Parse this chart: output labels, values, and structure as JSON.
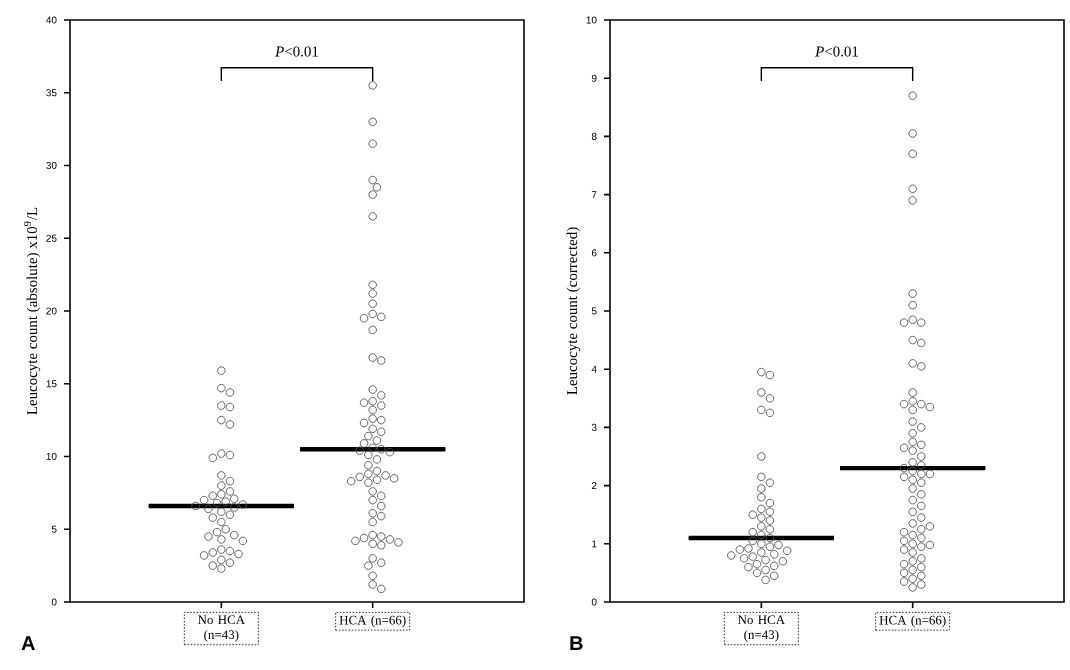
{
  "chart_data": [
    {
      "type": "scatter",
      "ylabel": "Leucocyte count (absolute) x10$^{9}$/L",
      "categories": [
        "No HCA (n=43)",
        "HCA (n=66)"
      ],
      "ylim": [
        0,
        40
      ],
      "yticks": [
        0,
        5,
        10,
        15,
        20,
        25,
        30,
        35,
        40
      ],
      "marker": "circle",
      "annotations": [
        "*P*<0.01",
        "A"
      ],
      "series": [
        {
          "type": "scatter",
          "color": "#555555",
          "x": [
            "No HCA (n=43)",
            "No HCA (n=43)",
            "No HCA (n=43)",
            "No HCA (n=43)",
            "No HCA (n=43)",
            "No HCA (n=43)",
            "No HCA (n=43)",
            "No HCA (n=43)",
            "No HCA (n=43)",
            "No HCA (n=43)",
            "No HCA (n=43)",
            "No HCA (n=43)",
            "No HCA (n=43)",
            "No HCA (n=43)",
            "No HCA (n=43)",
            "No HCA (n=43)",
            "No HCA (n=43)",
            "No HCA (n=43)",
            "No HCA (n=43)",
            "No HCA (n=43)",
            "No HCA (n=43)",
            "No HCA (n=43)",
            "No HCA (n=43)",
            "No HCA (n=43)",
            "No HCA (n=43)",
            "No HCA (n=43)",
            "No HCA (n=43)",
            "No HCA (n=43)",
            "No HCA (n=43)",
            "No HCA (n=43)",
            "No HCA (n=43)",
            "No HCA (n=43)",
            "No HCA (n=43)",
            "No HCA (n=43)",
            "No HCA (n=43)",
            "No HCA (n=43)",
            "No HCA (n=43)",
            "No HCA (n=43)",
            "No HCA (n=43)",
            "No HCA (n=43)",
            "No HCA (n=43)",
            "No HCA (n=43)",
            "No HCA (n=43)"
          ],
          "values": [
            15.9,
            14.7,
            14.4,
            13.5,
            13.4,
            12.5,
            12.2,
            10.2,
            10.1,
            9.9,
            8.7,
            8.3,
            8.0,
            7.6,
            7.4,
            7.3,
            7.1,
            7.0,
            6.9,
            6.8,
            6.7,
            6.6,
            6.5,
            6.4,
            6.2,
            6.0,
            5.8,
            5.5,
            5.0,
            4.8,
            4.6,
            4.5,
            4.3,
            4.2,
            3.6,
            3.5,
            3.4,
            3.3,
            3.2,
            2.9,
            2.7,
            2.5,
            2.3
          ]
        },
        {
          "type": "scatter",
          "color": "#555555",
          "x": [
            "HCA (n=66)",
            "HCA (n=66)",
            "HCA (n=66)",
            "HCA (n=66)",
            "HCA (n=66)",
            "HCA (n=66)",
            "HCA (n=66)",
            "HCA (n=66)",
            "HCA (n=66)",
            "HCA (n=66)",
            "HCA (n=66)",
            "HCA (n=66)",
            "HCA (n=66)",
            "HCA (n=66)",
            "HCA (n=66)",
            "HCA (n=66)",
            "HCA (n=66)",
            "HCA (n=66)",
            "HCA (n=66)",
            "HCA (n=66)",
            "HCA (n=66)",
            "HCA (n=66)",
            "HCA (n=66)",
            "HCA (n=66)",
            "HCA (n=66)",
            "HCA (n=66)",
            "HCA (n=66)",
            "HCA (n=66)",
            "HCA (n=66)",
            "HCA (n=66)",
            "HCA (n=66)",
            "HCA (n=66)",
            "HCA (n=66)",
            "HCA (n=66)",
            "HCA (n=66)",
            "HCA (n=66)",
            "HCA (n=66)",
            "HCA (n=66)",
            "HCA (n=66)",
            "HCA (n=66)",
            "HCA (n=66)",
            "HCA (n=66)",
            "HCA (n=66)",
            "HCA (n=66)",
            "HCA (n=66)",
            "HCA (n=66)",
            "HCA (n=66)",
            "HCA (n=66)",
            "HCA (n=66)",
            "HCA (n=66)",
            "HCA (n=66)",
            "HCA (n=66)",
            "HCA (n=66)",
            "HCA (n=66)",
            "HCA (n=66)",
            "HCA (n=66)",
            "HCA (n=66)",
            "HCA (n=66)",
            "HCA (n=66)",
            "HCA (n=66)",
            "HCA (n=66)",
            "HCA (n=66)",
            "HCA (n=66)",
            "HCA (n=66)",
            "HCA (n=66)",
            "HCA (n=66)"
          ],
          "values": [
            35.5,
            33.0,
            31.5,
            29.0,
            28.5,
            28.0,
            26.5,
            21.8,
            21.2,
            20.5,
            19.8,
            19.6,
            19.5,
            18.7,
            16.8,
            16.6,
            14.6,
            14.2,
            13.8,
            13.7,
            13.5,
            13.2,
            12.6,
            12.5,
            12.3,
            11.9,
            11.7,
            11.4,
            11.1,
            10.9,
            10.6,
            10.5,
            10.4,
            10.3,
            10.1,
            9.8,
            9.4,
            9.0,
            8.8,
            8.7,
            8.6,
            8.5,
            8.4,
            8.3,
            8.2,
            7.6,
            7.3,
            7.0,
            6.6,
            6.1,
            5.9,
            5.5,
            4.6,
            4.5,
            4.4,
            4.3,
            4.2,
            4.1,
            4.0,
            3.9,
            3.0,
            2.7,
            2.5,
            1.8,
            1.2,
            0.9
          ]
        },
        {
          "type": "box",
          "color": "#000000",
          "boxes": [
            {
              "low": 6.6,
              "q1": 6.6,
              "median": 6.6,
              "q3": 6.6,
              "high": 6.6
            },
            {
              "low": 10.5,
              "q1": 10.5,
              "median": 10.5,
              "q3": 10.5,
              "high": 10.5
            }
          ]
        }
      ]
    },
    {
      "type": "scatter",
      "ylabel": "Leucocyte count (corrected)",
      "categories": [
        "No HCA (n=43)",
        "HCA (n=66)"
      ],
      "ylim": [
        0,
        10
      ],
      "yticks": [
        0,
        1,
        2,
        3,
        4,
        5,
        6,
        7,
        8,
        9,
        10
      ],
      "marker": "circle",
      "annotations": [
        "*P*<0.01",
        "B"
      ],
      "series": [
        {
          "type": "scatter",
          "color": "#555555",
          "x": [
            "No HCA (n=43)",
            "No HCA (n=43)",
            "No HCA (n=43)",
            "No HCA (n=43)",
            "No HCA (n=43)",
            "No HCA (n=43)",
            "No HCA (n=43)",
            "No HCA (n=43)",
            "No HCA (n=43)",
            "No HCA (n=43)",
            "No HCA (n=43)",
            "No HCA (n=43)",
            "No HCA (n=43)",
            "No HCA (n=43)",
            "No HCA (n=43)",
            "No HCA (n=43)",
            "No HCA (n=43)",
            "No HCA (n=43)",
            "No HCA (n=43)",
            "No HCA (n=43)",
            "No HCA (n=43)",
            "No HCA (n=43)",
            "No HCA (n=43)",
            "No HCA (n=43)",
            "No HCA (n=43)",
            "No HCA (n=43)",
            "No HCA (n=43)",
            "No HCA (n=43)",
            "No HCA (n=43)",
            "No HCA (n=43)",
            "No HCA (n=43)",
            "No HCA (n=43)",
            "No HCA (n=43)",
            "No HCA (n=43)",
            "No HCA (n=43)",
            "No HCA (n=43)",
            "No HCA (n=43)",
            "No HCA (n=43)",
            "No HCA (n=43)",
            "No HCA (n=43)",
            "No HCA (n=43)",
            "No HCA (n=43)",
            "No HCA (n=43)"
          ],
          "values": [
            3.95,
            3.9,
            3.6,
            3.5,
            3.3,
            3.25,
            2.5,
            2.15,
            2.05,
            1.95,
            1.8,
            1.7,
            1.6,
            1.55,
            1.5,
            1.45,
            1.4,
            1.3,
            1.25,
            1.2,
            1.15,
            1.1,
            1.05,
            1.0,
            0.98,
            0.95,
            0.92,
            0.9,
            0.88,
            0.85,
            0.82,
            0.8,
            0.78,
            0.75,
            0.72,
            0.7,
            0.65,
            0.62,
            0.6,
            0.55,
            0.5,
            0.45,
            0.38
          ]
        },
        {
          "type": "scatter",
          "color": "#555555",
          "x": [
            "HCA (n=66)",
            "HCA (n=66)",
            "HCA (n=66)",
            "HCA (n=66)",
            "HCA (n=66)",
            "HCA (n=66)",
            "HCA (n=66)",
            "HCA (n=66)",
            "HCA (n=66)",
            "HCA (n=66)",
            "HCA (n=66)",
            "HCA (n=66)",
            "HCA (n=66)",
            "HCA (n=66)",
            "HCA (n=66)",
            "HCA (n=66)",
            "HCA (n=66)",
            "HCA (n=66)",
            "HCA (n=66)",
            "HCA (n=66)",
            "HCA (n=66)",
            "HCA (n=66)",
            "HCA (n=66)",
            "HCA (n=66)",
            "HCA (n=66)",
            "HCA (n=66)",
            "HCA (n=66)",
            "HCA (n=66)",
            "HCA (n=66)",
            "HCA (n=66)",
            "HCA (n=66)",
            "HCA (n=66)",
            "HCA (n=66)",
            "HCA (n=66)",
            "HCA (n=66)",
            "HCA (n=66)",
            "HCA (n=66)",
            "HCA (n=66)",
            "HCA (n=66)",
            "HCA (n=66)",
            "HCA (n=66)",
            "HCA (n=66)",
            "HCA (n=66)",
            "HCA (n=66)",
            "HCA (n=66)",
            "HCA (n=66)",
            "HCA (n=66)",
            "HCA (n=66)",
            "HCA (n=66)",
            "HCA (n=66)",
            "HCA (n=66)",
            "HCA (n=66)",
            "HCA (n=66)",
            "HCA (n=66)",
            "HCA (n=66)",
            "HCA (n=66)",
            "HCA (n=66)",
            "HCA (n=66)",
            "HCA (n=66)",
            "HCA (n=66)",
            "HCA (n=66)",
            "HCA (n=66)",
            "HCA (n=66)",
            "HCA (n=66)",
            "HCA (n=66)",
            "HCA (n=66)"
          ],
          "values": [
            8.7,
            8.05,
            7.7,
            7.1,
            6.9,
            5.3,
            5.1,
            4.85,
            4.8,
            4.8,
            4.5,
            4.45,
            4.1,
            4.05,
            3.6,
            3.45,
            3.4,
            3.4,
            3.35,
            3.3,
            3.1,
            3.0,
            2.9,
            2.75,
            2.7,
            2.65,
            2.6,
            2.5,
            2.4,
            2.35,
            2.3,
            2.25,
            2.2,
            2.2,
            2.15,
            2.1,
            2.05,
            1.95,
            1.85,
            1.75,
            1.65,
            1.55,
            1.45,
            1.35,
            1.25,
            1.15,
            1.1,
            1.05,
            1.0,
            0.98,
            0.95,
            0.9,
            0.85,
            0.75,
            0.7,
            0.65,
            0.6,
            0.55,
            0.5,
            0.45,
            0.4,
            0.35,
            0.3,
            0.25,
            1.2,
            1.3
          ]
        },
        {
          "type": "box",
          "color": "#000000",
          "boxes": [
            {
              "low": 1.1,
              "q1": 1.1,
              "median": 1.1,
              "q3": 1.1,
              "high": 1.1
            },
            {
              "low": 2.3,
              "q1": 2.3,
              "median": 2.3,
              "q3": 2.3,
              "high": 2.3
            }
          ]
        }
      ]
    }
  ]
}
